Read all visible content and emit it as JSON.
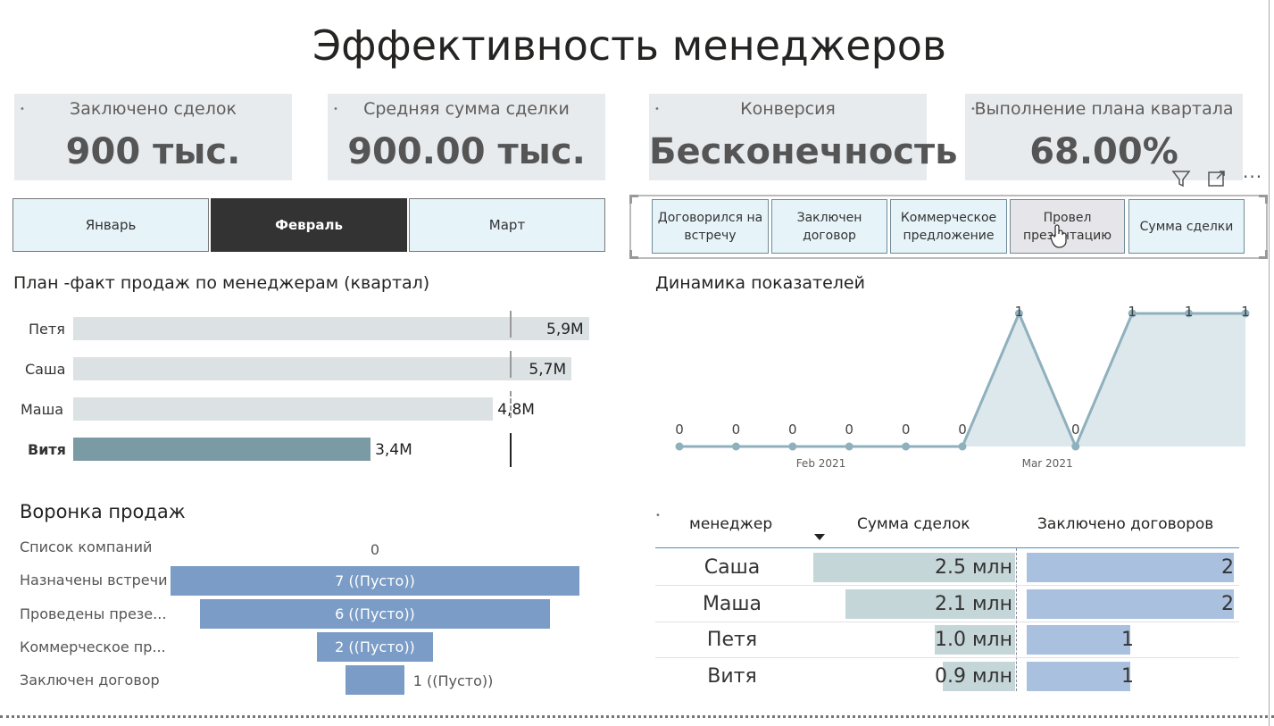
{
  "title": "Эффективность менеджеров",
  "cards": [
    {
      "label": "Заключено сделок",
      "value": "900 тыс."
    },
    {
      "label": "Средняя сумма сделки",
      "value": "900.00 тыс."
    },
    {
      "label": "Конверсия",
      "value": "Бесконечность"
    },
    {
      "label": "Выполнение плана квартала",
      "value": "68.00%"
    }
  ],
  "months": [
    "Январь",
    "Февраль",
    "Март"
  ],
  "selected_month": "Февраль",
  "stage_slicer": [
    "Договорился на встречу",
    "Заключен договор",
    "Коммерческое предложение",
    "Провел презентацию",
    "Сумма сделки"
  ],
  "visual_icons": [
    "filter-icon",
    "focus-mode-icon",
    "more-options-icon"
  ],
  "plan_fact": {
    "title": "План -факт продаж по менеджерам (квартал)",
    "chart_data": {
      "type": "bar",
      "orientation": "horizontal",
      "categories": [
        "Петя",
        "Саша",
        "Маша",
        "Витя"
      ],
      "values": [
        5.9,
        5.7,
        4.8,
        3.4
      ],
      "value_labels": [
        "5,9M",
        "5,7M",
        "4,8M",
        "3,4M"
      ],
      "target": 5.0,
      "highlighted": "Витя",
      "xlim": [
        0,
        5.9
      ],
      "colors": {
        "default": "#dce1e4",
        "highlight": "#7a9ba3"
      }
    }
  },
  "dynamics": {
    "title": "Динамика показателей",
    "chart_data": {
      "type": "area",
      "x_index": [
        0,
        1,
        2,
        3,
        4,
        5,
        6,
        7,
        8,
        9,
        10
      ],
      "values": [
        0,
        0,
        0,
        0,
        0,
        0,
        1,
        0,
        1,
        1,
        1
      ],
      "point_labels": [
        "0",
        "0",
        "0",
        "0",
        "0",
        "0",
        "1",
        "0",
        "1",
        "1",
        "1"
      ],
      "x_ticks": [
        {
          "index": 2.5,
          "label": "Feb 2021"
        },
        {
          "index": 6.5,
          "label": "Mar 2021"
        }
      ],
      "ylim": [
        0,
        1
      ],
      "color": "#8fb0bd"
    }
  },
  "funnel": {
    "title": "Воронка продаж",
    "chart_data": {
      "type": "bar",
      "orientation": "funnel",
      "categories": [
        "Список компаний",
        "Назначены встречи",
        "Проведены презе...",
        "Коммерческое пр...",
        "Заключен договор"
      ],
      "values": [
        0,
        7,
        6,
        2,
        1
      ],
      "value_labels": [
        "0",
        "7 ((Пусто))",
        "6 ((Пусто))",
        "2 ((Пусто))",
        "1 ((Пусто))"
      ],
      "color": "#7a9cc6"
    }
  },
  "table": {
    "headers": [
      "менеджер",
      "Сумма сделок",
      "Заключено договоров"
    ],
    "sort_column": "менеджер",
    "rows": [
      {
        "name": "Саша",
        "sum": "2.5 млн",
        "sum_value": 2.5,
        "deals": "2",
        "deals_value": 2
      },
      {
        "name": "Маша",
        "sum": "2.1 млн",
        "sum_value": 2.1,
        "deals": "2",
        "deals_value": 2
      },
      {
        "name": "Петя",
        "sum": "1.0 млн",
        "sum_value": 1.0,
        "deals": "1",
        "deals_value": 1
      },
      {
        "name": "Витя",
        "sum": "0.9 млн",
        "sum_value": 0.9,
        "deals": "1",
        "deals_value": 1
      }
    ]
  }
}
